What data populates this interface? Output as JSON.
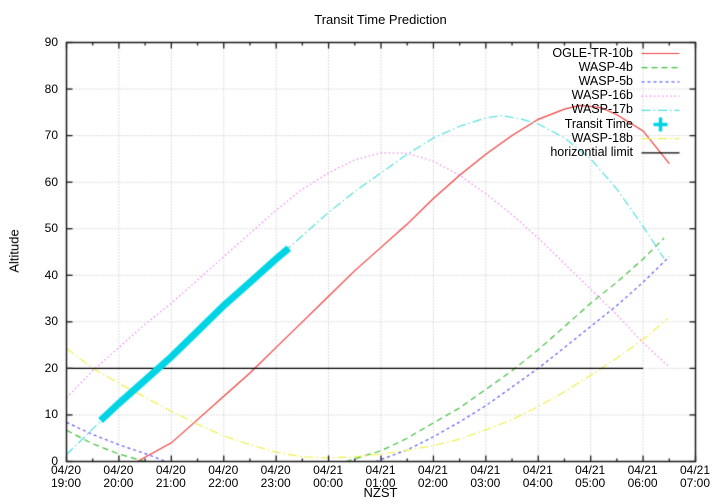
{
  "chart": {
    "title": "Transit Time Prediction",
    "xlabel": "NZST",
    "ylabel": "Altitude"
  },
  "chart_data": {
    "type": "line",
    "title": "Transit Time Prediction",
    "xlabel": "NZST",
    "ylabel": "Altitude",
    "x_axis_note": "hours after 04/20 19:00 NZST",
    "xlim_hours": [
      0,
      12
    ],
    "ylim": [
      0,
      90
    ],
    "grid": true,
    "legend_position": "top-right-inside",
    "x_tick_labels": [
      [
        "04/20",
        "19:00"
      ],
      [
        "04/20",
        "20:00"
      ],
      [
        "04/20",
        "21:00"
      ],
      [
        "04/20",
        "22:00"
      ],
      [
        "04/20",
        "23:00"
      ],
      [
        "04/21",
        "00:00"
      ],
      [
        "04/21",
        "01:00"
      ],
      [
        "04/21",
        "02:00"
      ],
      [
        "04/21",
        "03:00"
      ],
      [
        "04/21",
        "04:00"
      ],
      [
        "04/21",
        "05:00"
      ],
      [
        "04/21",
        "06:00"
      ],
      [
        "04/21",
        "07:00"
      ]
    ],
    "y_ticks": [
      0,
      10,
      20,
      30,
      40,
      50,
      60,
      70,
      80,
      90
    ],
    "colors": {
      "grid": "#bbbbbb",
      "border": "#1a1a1a"
    },
    "series": [
      {
        "name": "OGLE-TR-10b",
        "color": "#ef4040",
        "style": "solid",
        "width": 1.2,
        "legend": "line",
        "segments": [
          [
            [
              1.35,
              0
            ],
            [
              2,
              4
            ],
            [
              2.5,
              9
            ],
            [
              3,
              14
            ],
            [
              3.5,
              19
            ],
            [
              4,
              24.5
            ],
            [
              4.5,
              30
            ],
            [
              5,
              35.5
            ],
            [
              5.5,
              41
            ],
            [
              6,
              46
            ],
            [
              6.5,
              51
            ],
            [
              7,
              56.5
            ],
            [
              7.5,
              61.5
            ],
            [
              8,
              66
            ],
            [
              8.5,
              70
            ],
            [
              9,
              73.5
            ],
            [
              9.5,
              75.7
            ],
            [
              9.8,
              76.5
            ],
            [
              10.2,
              76
            ],
            [
              10.5,
              74.5
            ],
            [
              11,
              71
            ],
            [
              11.5,
              64
            ]
          ]
        ]
      },
      {
        "name": "WASP-4b",
        "color": "#3fbf3f",
        "style": "dash",
        "width": 1.2,
        "legend": "line",
        "segments": [
          [
            [
              0,
              6.7
            ],
            [
              0.5,
              3.8
            ],
            [
              1,
              1.6
            ],
            [
              1.5,
              0
            ]
          ],
          [
            [
              5.33,
              0
            ],
            [
              6,
              2.3
            ],
            [
              6.5,
              5
            ],
            [
              7,
              8.3
            ],
            [
              7.5,
              11.5
            ],
            [
              8,
              15.5
            ],
            [
              8.5,
              19.5
            ],
            [
              9,
              24
            ],
            [
              9.5,
              29
            ],
            [
              10,
              34
            ],
            [
              10.5,
              38.5
            ],
            [
              11,
              43.5
            ],
            [
              11.4,
              48
            ]
          ]
        ]
      },
      {
        "name": "WASP-5b",
        "color": "#5a5af5",
        "style": "shortdash",
        "width": 1.2,
        "legend": "line",
        "segments": [
          [
            [
              0,
              8.4
            ],
            [
              0.5,
              5.8
            ],
            [
              1,
              3.6
            ],
            [
              1.5,
              1.7
            ],
            [
              1.9,
              0
            ]
          ],
          [
            [
              5.9,
              0
            ],
            [
              6.5,
              2.5
            ],
            [
              7,
              5.3
            ],
            [
              7.5,
              8.5
            ],
            [
              8,
              12
            ],
            [
              8.5,
              16
            ],
            [
              9,
              20
            ],
            [
              9.5,
              24.5
            ],
            [
              10,
              29
            ],
            [
              10.5,
              33.5
            ],
            [
              11,
              38.5
            ],
            [
              11.5,
              44
            ]
          ]
        ]
      },
      {
        "name": "WASP-16b",
        "color": "#f280f2",
        "style": "dot",
        "width": 1.2,
        "legend": "line",
        "segments": [
          [
            [
              0,
              13.7
            ],
            [
              0.5,
              19.5
            ],
            [
              1,
              24.5
            ],
            [
              1.5,
              29.5
            ],
            [
              2,
              34
            ],
            [
              2.5,
              39
            ],
            [
              3,
              44
            ],
            [
              3.5,
              49
            ],
            [
              4,
              54
            ],
            [
              4.5,
              58.5
            ],
            [
              5,
              62
            ],
            [
              5.5,
              64.8
            ],
            [
              6,
              66.3
            ],
            [
              6.5,
              66.2
            ],
            [
              7,
              64.5
            ],
            [
              7.5,
              61.5
            ],
            [
              8,
              57.5
            ],
            [
              8.5,
              53
            ],
            [
              9,
              48
            ],
            [
              9.5,
              42.5
            ],
            [
              10,
              37
            ],
            [
              10.5,
              31.5
            ],
            [
              11,
              25.5
            ],
            [
              11.47,
              20.6
            ]
          ]
        ]
      },
      {
        "name": "WASP-17b",
        "color": "#58dede",
        "style": "dashdot",
        "width": 1.2,
        "legend": "line",
        "segments": [
          [
            [
              0,
              1.5
            ],
            [
              0.5,
              7
            ],
            [
              1,
              12.5
            ],
            [
              1.5,
              17.5
            ],
            [
              2,
              22.5
            ],
            [
              2.5,
              28
            ],
            [
              3,
              33.5
            ],
            [
              3.5,
              38.5
            ],
            [
              4,
              43.5
            ],
            [
              4.5,
              48.5
            ],
            [
              5,
              53.5
            ],
            [
              5.5,
              58
            ],
            [
              6,
              62
            ],
            [
              6.5,
              66
            ],
            [
              7,
              69.5
            ],
            [
              7.5,
              72
            ],
            [
              8,
              73.8
            ],
            [
              8.3,
              74.3
            ],
            [
              8.7,
              73.5
            ],
            [
              9,
              72.5
            ],
            [
              9.5,
              69.5
            ],
            [
              10,
              65
            ],
            [
              10.5,
              58.5
            ],
            [
              11,
              50.5
            ],
            [
              11.4,
              43.6
            ]
          ]
        ]
      },
      {
        "name": "Transit Time",
        "color": "#00d4e4",
        "style": "solid",
        "width": 7,
        "legend": "marker",
        "segments": [
          [
            [
              0.65,
              8.8
            ],
            [
              1,
              12.5
            ],
            [
              1.5,
              17.5
            ],
            [
              2,
              22.5
            ],
            [
              2.5,
              28
            ],
            [
              3,
              33.5
            ],
            [
              3.5,
              38.5
            ],
            [
              4,
              43.5
            ],
            [
              4.24,
              45.8
            ]
          ]
        ]
      },
      {
        "name": "WASP-18b",
        "color": "#efef4e",
        "style": "dashdot",
        "width": 1.2,
        "legend": "line",
        "segments": [
          [
            [
              0,
              24.3
            ],
            [
              0.5,
              20
            ],
            [
              1,
              16.8
            ],
            [
              1.5,
              13.8
            ],
            [
              2,
              10.8
            ],
            [
              2.5,
              8
            ],
            [
              3,
              5.5
            ],
            [
              3.5,
              3.6
            ],
            [
              4,
              2
            ],
            [
              4.5,
              1
            ],
            [
              5,
              0.8
            ],
            [
              5.5,
              1
            ],
            [
              6,
              1.6
            ],
            [
              6.5,
              2.4
            ],
            [
              7,
              3.4
            ],
            [
              7.5,
              4.8
            ],
            [
              8,
              6.8
            ],
            [
              8.5,
              9
            ],
            [
              9,
              11.8
            ],
            [
              9.5,
              15
            ],
            [
              10,
              18.5
            ],
            [
              10.5,
              22.2
            ],
            [
              11,
              26.2
            ],
            [
              11.47,
              30.7
            ]
          ]
        ]
      },
      {
        "name": "horizontial limit",
        "color": "#000000",
        "style": "solid",
        "width": 1.3,
        "legend": "line",
        "segments": [
          [
            [
              0,
              20
            ],
            [
              11,
              20
            ]
          ]
        ]
      }
    ]
  }
}
